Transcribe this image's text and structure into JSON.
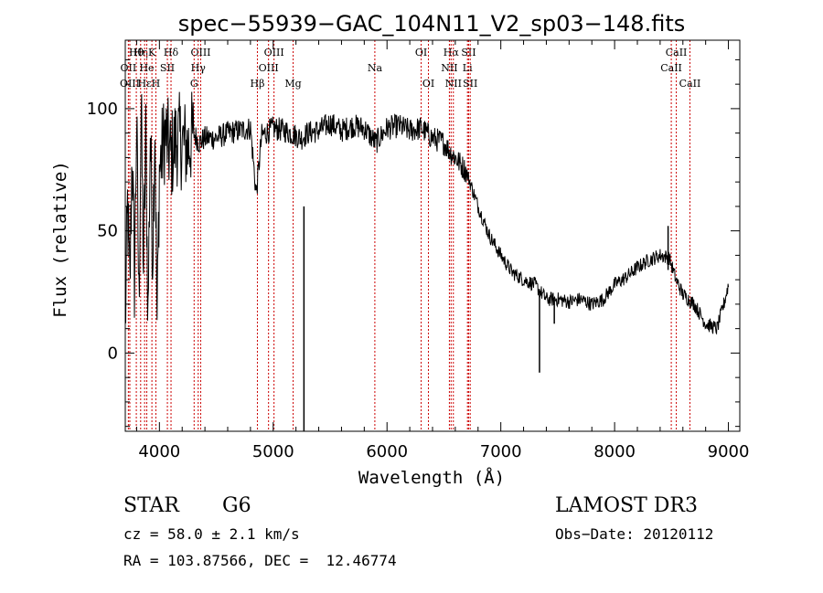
{
  "chart_data": {
    "type": "line",
    "title": "spec−55939−GAC_104N11_V2_sp03−148.fits",
    "xlabel": "Wavelength (Å)",
    "ylabel": "Flux (relative)",
    "xlim": [
      3700,
      9100
    ],
    "ylim": [
      -32,
      128
    ],
    "x_ticks": [
      4000,
      5000,
      6000,
      7000,
      8000,
      9000
    ],
    "x_tick_labels": [
      "4000",
      "5000",
      "6000",
      "7000",
      "8000",
      "9000"
    ],
    "y_ticks": [
      0,
      50,
      100
    ],
    "y_tick_labels": [
      "0",
      "50",
      "100"
    ],
    "grid": false,
    "series": [
      {
        "name": "flux",
        "color": "#000000",
        "x": [
          3700,
          3720,
          3740,
          3760,
          3780,
          3800,
          3820,
          3840,
          3860,
          3880,
          3900,
          3920,
          3940,
          3960,
          3980,
          4000,
          4050,
          4100,
          4150,
          4200,
          4250,
          4300,
          4350,
          4400,
          4500,
          4600,
          4700,
          4800,
          4850,
          4900,
          5000,
          5100,
          5200,
          5250,
          5300,
          5400,
          5500,
          5600,
          5700,
          5800,
          5900,
          6000,
          6100,
          6200,
          6300,
          6400,
          6500,
          6560,
          6600,
          6700,
          6800,
          6900,
          7000,
          7100,
          7200,
          7300,
          7400,
          7500,
          7600,
          7700,
          7800,
          7900,
          8000,
          8100,
          8200,
          8300,
          8400,
          8480,
          8540,
          8600,
          8700,
          8800,
          8900,
          8960,
          9000
        ],
        "y": [
          10,
          60,
          25,
          85,
          30,
          95,
          20,
          100,
          35,
          88,
          15,
          92,
          40,
          96,
          12,
          75,
          90,
          80,
          88,
          86,
          84,
          90,
          86,
          88,
          88,
          90,
          91,
          92,
          65,
          89,
          92,
          91,
          89,
          88,
          90,
          91,
          94,
          91,
          93,
          92,
          86,
          92,
          93,
          91,
          92,
          88,
          86,
          82,
          80,
          74,
          60,
          48,
          40,
          33,
          30,
          28,
          22,
          22,
          21,
          22,
          20,
          22,
          28,
          31,
          35,
          38,
          40,
          39,
          30,
          24,
          20,
          12,
          10,
          20,
          28
        ]
      }
    ],
    "spikes": [
      {
        "x": 5270,
        "y_top": 60,
        "y_bottom": -32
      },
      {
        "x": 7340,
        "y_top": 25,
        "y_bottom": -8
      },
      {
        "x": 7470,
        "y_top": 22,
        "y_bottom": 12
      },
      {
        "x": 8470,
        "y_top": 52,
        "y_bottom": 34
      }
    ],
    "line_markers": [
      {
        "label": "Hθ",
        "x": 3797,
        "row": 0
      },
      {
        "label": "OII",
        "x": 3727,
        "row": 1
      },
      {
        "label": "OIII",
        "x": 3740,
        "row": 2
      },
      {
        "label": "Hη",
        "x": 3835,
        "row": 0
      },
      {
        "label": "He",
        "x": 3889,
        "row": 1
      },
      {
        "label": "Hε",
        "x": 3870,
        "row": 2
      },
      {
        "label": "K",
        "x": 3934,
        "row": 0
      },
      {
        "label": "SII",
        "x": 4070,
        "row": 1
      },
      {
        "label": "H",
        "x": 3969,
        "row": 2
      },
      {
        "label": "Hδ",
        "x": 4102,
        "row": 0
      },
      {
        "label": "OIII",
        "x": 4363,
        "row": 0
      },
      {
        "label": "Hγ",
        "x": 4341,
        "row": 1
      },
      {
        "label": "G",
        "x": 4305,
        "row": 2
      },
      {
        "label": "Hβ",
        "x": 4861,
        "row": 2
      },
      {
        "label": "OIII",
        "x": 5007,
        "row": 0
      },
      {
        "label": "OIII",
        "x": 4959,
        "row": 1
      },
      {
        "label": "Mg",
        "x": 5175,
        "row": 2
      },
      {
        "label": "Na",
        "x": 5893,
        "row": 1
      },
      {
        "label": "OI",
        "x": 6300,
        "row": 0
      },
      {
        "label": "OI",
        "x": 6364,
        "row": 2
      },
      {
        "label": "Hα",
        "x": 6563,
        "row": 0
      },
      {
        "label": "NII",
        "x": 6548,
        "row": 1
      },
      {
        "label": "NII",
        "x": 6583,
        "row": 2
      },
      {
        "label": "SII",
        "x": 6717,
        "row": 0
      },
      {
        "label": "Li",
        "x": 6707,
        "row": 1
      },
      {
        "label": "SII",
        "x": 6731,
        "row": 2
      },
      {
        "label": "CaII",
        "x": 8542,
        "row": 0
      },
      {
        "label": "CaII",
        "x": 8498,
        "row": 1
      },
      {
        "label": "CaII",
        "x": 8662,
        "row": 2
      }
    ]
  },
  "info": {
    "object_class": "STAR",
    "subclass": "G6",
    "redshift_line": "cz = 58.0 ± 2.1 km/s",
    "coords_line": "RA = 103.87566, DEC =  12.46774",
    "survey": "LAMOST DR3",
    "obs_date": "Obs−Date: 20120112"
  },
  "colors": {
    "axis": "#000000",
    "line": "#000000",
    "marker": "#cc0000",
    "background": "#ffffff"
  }
}
